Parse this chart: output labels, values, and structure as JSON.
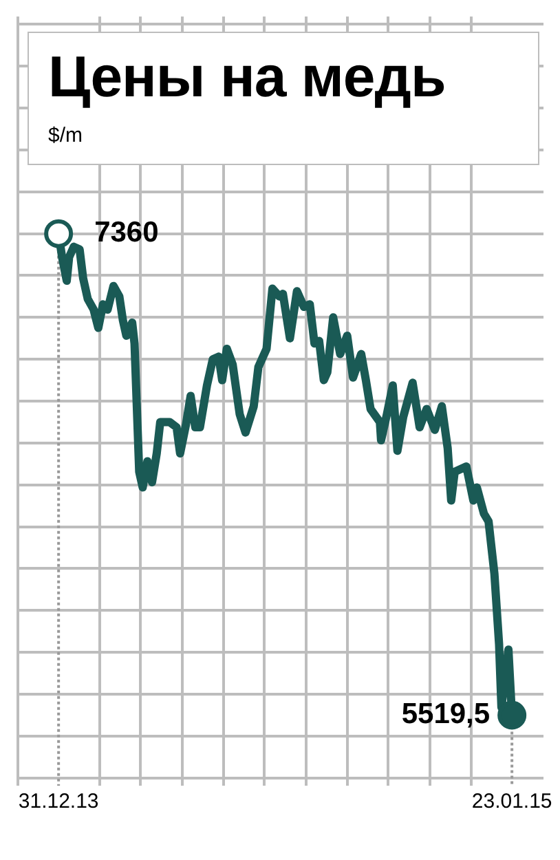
{
  "chart_data": {
    "type": "line",
    "title": "Цены на медь",
    "subtitle": "$/m",
    "x": [
      "2013-12-31",
      "2014-01-03",
      "2014-01-07",
      "2014-01-09",
      "2014-01-13",
      "2014-01-18",
      "2014-01-21",
      "2014-01-25",
      "2014-01-30",
      "2014-02-03",
      "2014-02-07",
      "2014-02-11",
      "2014-02-16",
      "2014-02-21",
      "2014-02-24",
      "2014-02-27",
      "2014-03-04",
      "2014-03-06",
      "2014-03-10",
      "2014-03-13",
      "2014-03-17",
      "2014-03-21",
      "2014-03-25",
      "2014-03-28",
      "2014-04-05",
      "2014-04-11",
      "2014-04-14",
      "2014-04-19",
      "2014-04-23",
      "2014-04-27",
      "2014-05-01",
      "2014-05-07",
      "2014-05-12",
      "2014-05-17",
      "2014-05-20",
      "2014-05-24",
      "2014-05-29",
      "2014-06-04",
      "2014-06-09",
      "2014-06-16",
      "2014-06-20",
      "2014-06-27",
      "2014-07-02",
      "2014-07-08",
      "2014-07-11",
      "2014-07-17",
      "2014-07-23",
      "2014-07-29",
      "2014-08-03",
      "2014-08-07",
      "2014-08-11",
      "2014-08-15",
      "2014-08-18",
      "2014-08-23",
      "2014-08-29",
      "2014-09-04",
      "2014-09-09",
      "2014-09-16",
      "2014-09-20",
      "2014-09-24",
      "2014-10-02",
      "2014-10-03",
      "2014-10-08",
      "2014-10-13",
      "2014-10-17",
      "2014-10-22",
      "2014-10-30",
      "2014-11-05",
      "2014-11-11",
      "2014-11-18",
      "2014-11-24",
      "2014-11-29",
      "2014-12-02",
      "2014-12-05",
      "2014-12-15",
      "2014-12-21",
      "2014-12-24",
      "2014-12-30",
      "2015-01-03",
      "2015-01-08",
      "2015-01-12",
      "2015-01-14",
      "2015-01-20",
      "2015-01-23"
    ],
    "series": [
      {
        "color": "#1a5a55",
        "values": [
          7360,
          7270,
          7180,
          7270,
          7310,
          7300,
          7190,
          7110,
          7070,
          7000,
          7090,
          7070,
          7160,
          7120,
          7030,
          6970,
          7020,
          6940,
          6450,
          6390,
          6490,
          6410,
          6520,
          6640,
          6640,
          6620,
          6520,
          6630,
          6740,
          6620,
          6620,
          6780,
          6880,
          6890,
          6800,
          6920,
          6860,
          6670,
          6600,
          6700,
          6850,
          6920,
          7150,
          7120,
          7130,
          6960,
          7140,
          7080,
          7090,
          6940,
          6950,
          6800,
          6830,
          7040,
          6900,
          6970,
          6810,
          6900,
          6800,
          6690,
          6640,
          6570,
          6670,
          6780,
          6530,
          6660,
          6790,
          6620,
          6690,
          6610,
          6700,
          6540,
          6340,
          6450,
          6470,
          6340,
          6390,
          6290,
          6260,
          6060,
          5790,
          5550,
          5770,
          5519.5
        ],
        "value_labels": [
          "7360",
          null,
          null,
          null,
          null,
          null,
          null,
          null,
          null,
          null,
          null,
          null,
          null,
          null,
          null,
          null,
          null,
          null,
          null,
          null,
          null,
          null,
          null,
          null,
          null,
          null,
          null,
          null,
          null,
          null,
          null,
          null,
          null,
          null,
          null,
          null,
          null,
          null,
          null,
          null,
          null,
          null,
          null,
          null,
          null,
          null,
          null,
          null,
          null,
          null,
          null,
          null,
          null,
          null,
          null,
          null,
          null,
          null,
          null,
          null,
          null,
          null,
          null,
          null,
          null,
          null,
          null,
          null,
          null,
          null,
          null,
          null,
          null,
          null,
          null,
          null,
          null,
          null,
          null,
          null,
          null,
          null,
          null,
          "5519,5"
        ]
      }
    ],
    "xlim": [
      "2013-11-25",
      "2015-02-19"
    ],
    "xticks": [
      {
        "value": "2013-11-26",
        "label": null
      },
      {
        "value": "2013-12-31",
        "label": "31.12.13"
      },
      {
        "value": "2014-02-04",
        "label": null
      },
      {
        "value": "2014-03-11",
        "label": null
      },
      {
        "value": "2014-04-16",
        "label": null
      },
      {
        "value": "2014-05-21",
        "label": null
      },
      {
        "value": "2014-06-25",
        "label": null
      },
      {
        "value": "2014-07-31",
        "label": null
      },
      {
        "value": "2014-09-04",
        "label": null
      },
      {
        "value": "2014-10-09",
        "label": null
      },
      {
        "value": "2014-11-14",
        "label": null
      },
      {
        "value": "2014-12-19",
        "label": null
      },
      {
        "value": "2015-01-23",
        "label": "23.01.15"
      }
    ],
    "ylim": [
      5250,
      8190
    ],
    "yticks": [
      {
        "value": 5280,
        "label": null
      },
      {
        "value": 5440,
        "label": null
      },
      {
        "value": 5600,
        "label": null
      },
      {
        "value": 5760,
        "label": null
      },
      {
        "value": 5920,
        "label": null
      },
      {
        "value": 6080,
        "label": null
      },
      {
        "value": 6240,
        "label": null
      },
      {
        "value": 6400,
        "label": null
      },
      {
        "value": 6560,
        "label": null
      },
      {
        "value": 6720,
        "label": null
      },
      {
        "value": 6880,
        "label": null
      },
      {
        "value": 7040,
        "label": null
      },
      {
        "value": 7200,
        "label": null
      },
      {
        "value": 7360,
        "label": null
      },
      {
        "value": 7520,
        "label": null
      },
      {
        "value": 7680,
        "label": null
      },
      {
        "value": 7840,
        "label": null
      },
      {
        "value": 8000,
        "label": null
      },
      {
        "value": 8160,
        "label": null
      }
    ],
    "tick_labels": "x",
    "grid": true,
    "legend": false,
    "marker": "none",
    "line_style": "solid"
  }
}
